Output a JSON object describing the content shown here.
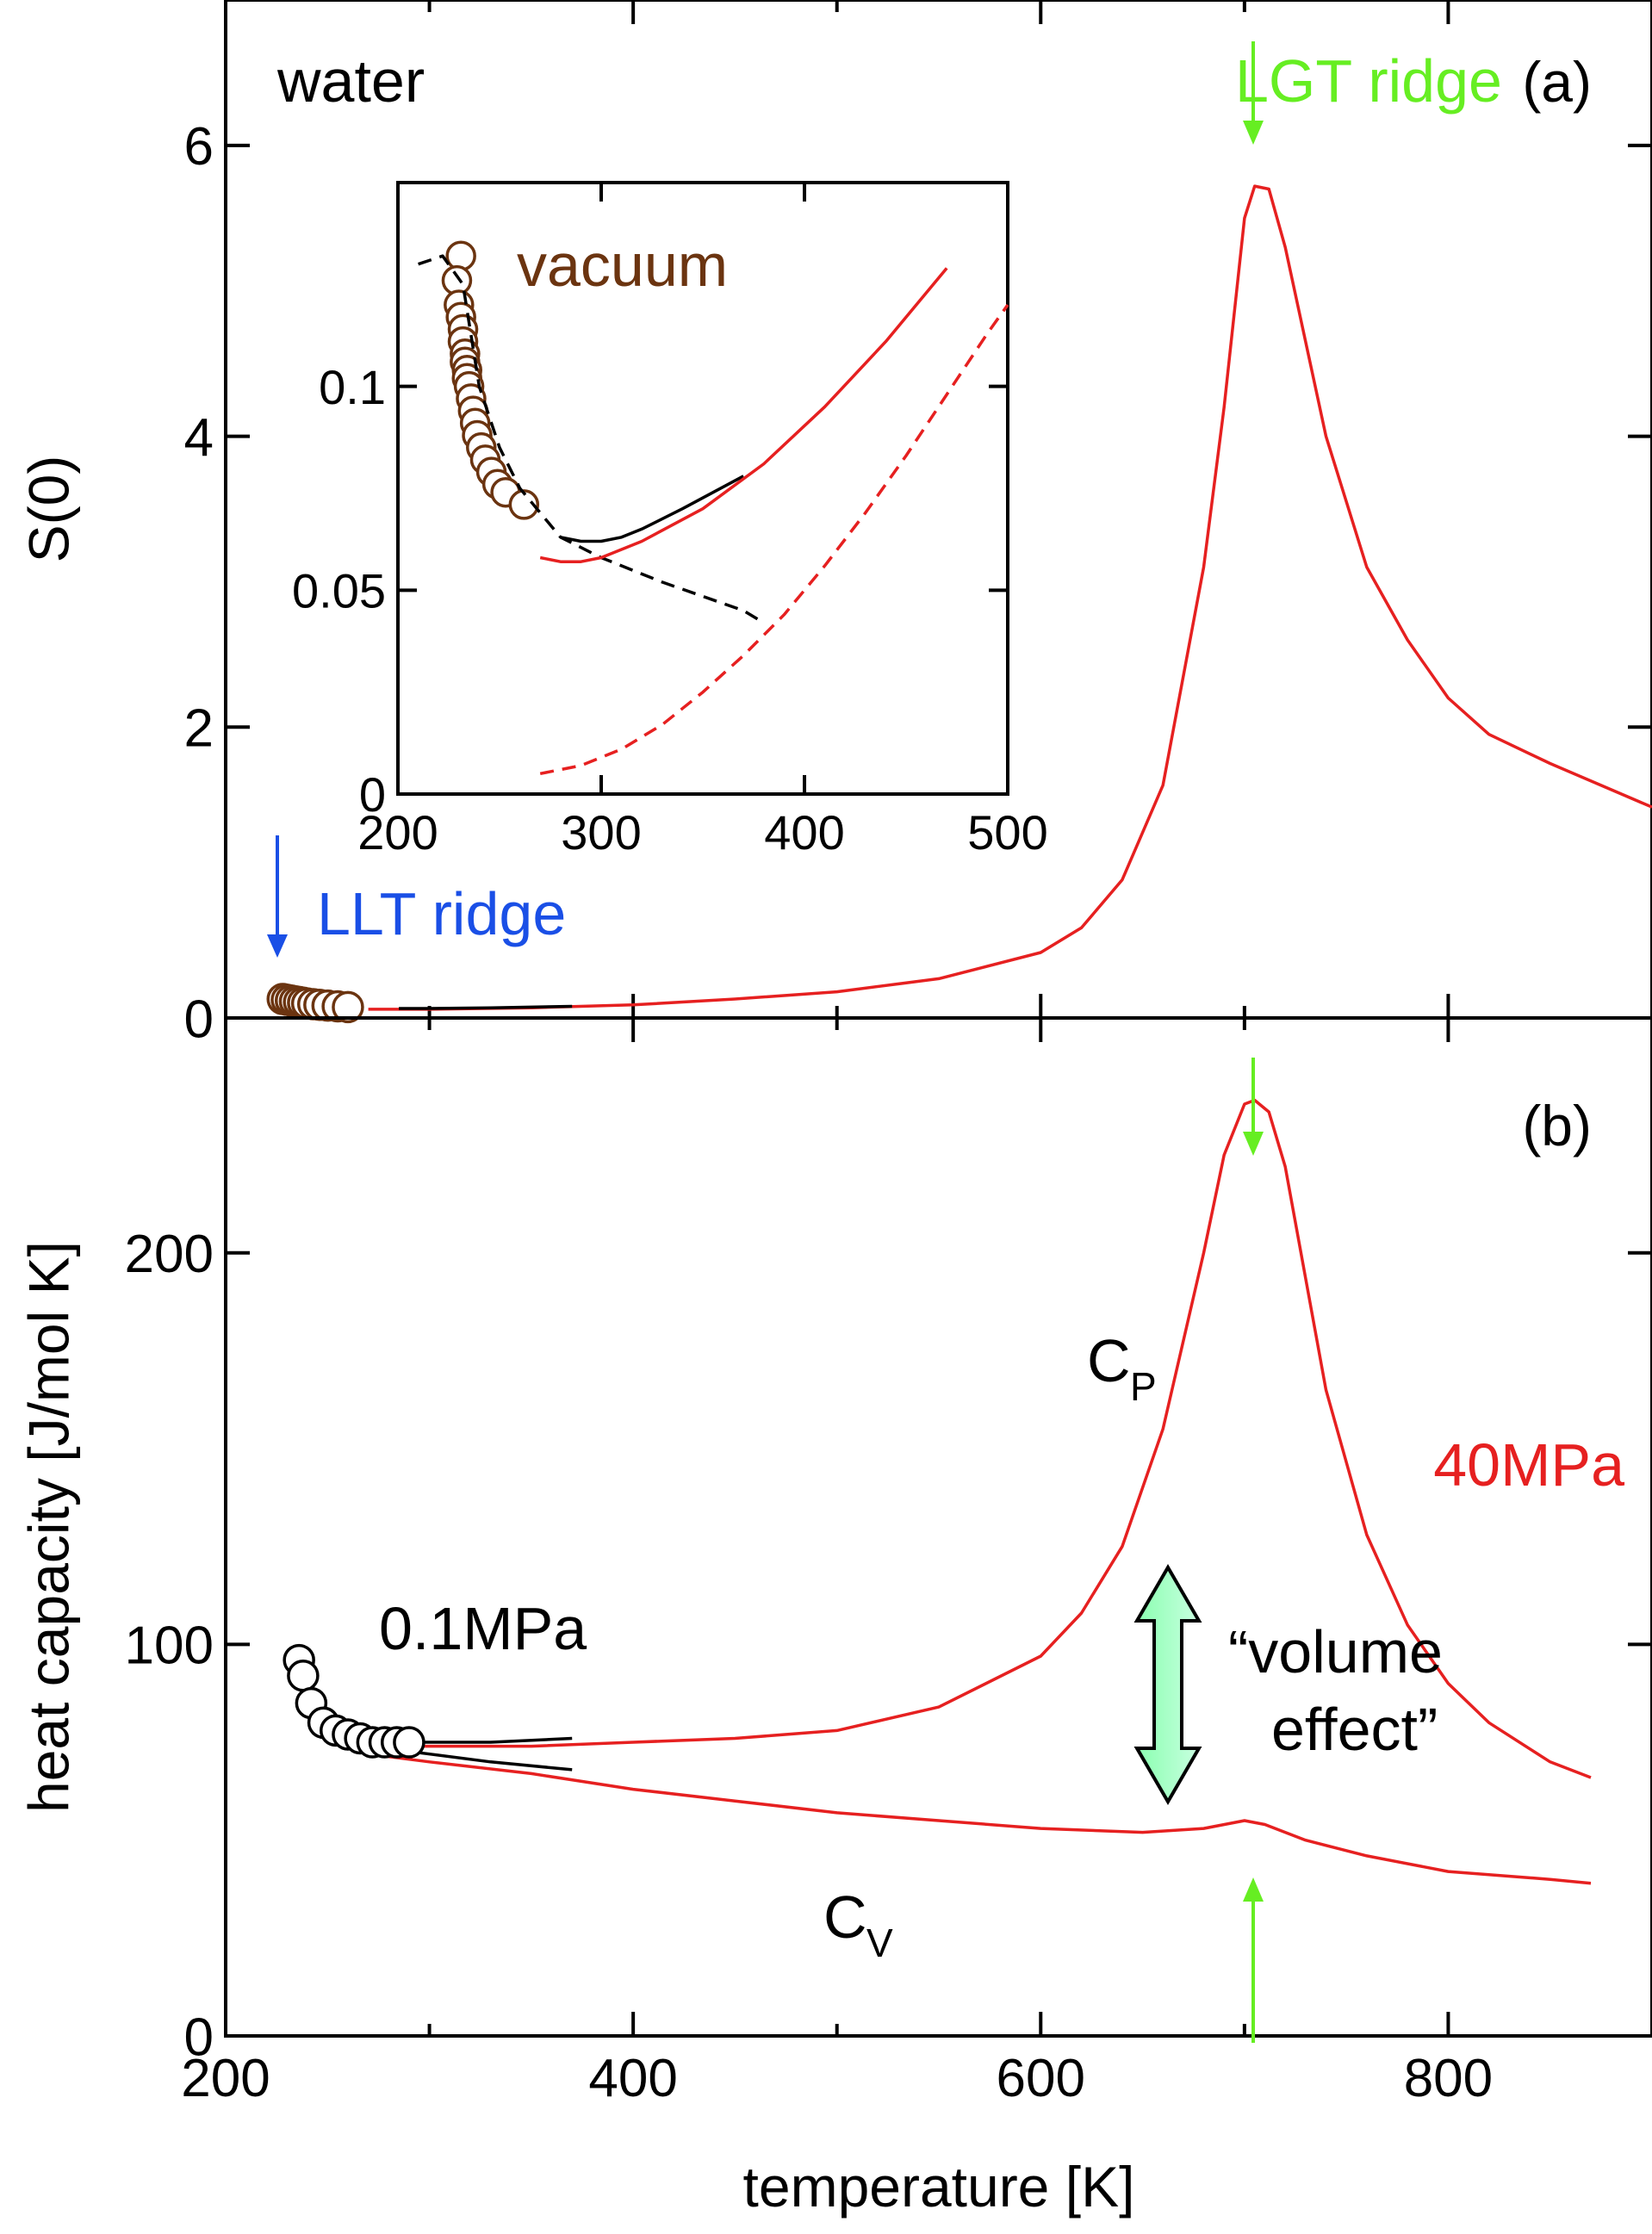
{
  "chart_data": [
    {
      "type": "line",
      "panel_label": "(a)",
      "title": "water",
      "xlabel": "",
      "ylabel": "S(0)",
      "xlim": [
        200,
        900
      ],
      "ylim": [
        0,
        7
      ],
      "xticks": [
        200,
        400,
        600,
        800
      ],
      "yticks": [
        0,
        2,
        4,
        6
      ],
      "ytick_labels": [
        "0",
        "2",
        "4",
        "6"
      ],
      "annotations": [
        {
          "text": "LGT ridge",
          "x": 705,
          "color": "#66ee22",
          "arrow": "down"
        },
        {
          "text": "LLT ridge",
          "x": 225,
          "color": "#1a4fe6",
          "arrow": "down"
        }
      ],
      "series": [
        {
          "name": "calc_40MPa",
          "color": "#e62020",
          "style": "solid",
          "x": [
            270,
            300,
            350,
            400,
            450,
            500,
            550,
            600,
            620,
            640,
            660,
            680,
            690,
            700,
            705,
            712,
            720,
            740,
            760,
            780,
            800,
            820,
            850,
            900
          ],
          "y": [
            0.06,
            0.06,
            0.07,
            0.09,
            0.13,
            0.18,
            0.27,
            0.45,
            0.62,
            0.95,
            1.6,
            3.1,
            4.2,
            5.5,
            5.72,
            5.7,
            5.3,
            4.0,
            3.1,
            2.6,
            2.2,
            1.95,
            1.75,
            1.45
          ]
        },
        {
          "name": "calc_0.1MPa",
          "color": "#000000",
          "style": "solid",
          "x": [
            285,
            300,
            330,
            370
          ],
          "y": [
            0.065,
            0.065,
            0.07,
            0.08
          ]
        },
        {
          "name": "exp_vacuum",
          "color": "#6b3410",
          "style": "markers",
          "x": [
            228,
            230,
            232,
            234,
            236,
            238,
            240,
            243,
            246,
            250,
            255,
            260
          ],
          "y": [
            0.13,
            0.125,
            0.12,
            0.115,
            0.11,
            0.105,
            0.1,
            0.095,
            0.09,
            0.085,
            0.08,
            0.075
          ]
        }
      ]
    },
    {
      "type": "line",
      "panel_label": "inset",
      "title": "vacuum",
      "xlim": [
        200,
        500
      ],
      "ylim": [
        0,
        0.15
      ],
      "xticks": [
        200,
        300,
        400,
        500
      ],
      "yticks": [
        0,
        0.05,
        0.1
      ],
      "ytick_labels": [
        "0",
        "0.05",
        "0.1"
      ],
      "series": [
        {
          "name": "exp_vacuum",
          "color": "#6b3410",
          "style": "markers",
          "x": [
            231,
            229,
            230,
            231,
            232,
            232,
            233,
            233,
            234,
            234,
            235,
            236,
            237,
            238,
            239,
            241,
            243,
            246,
            249,
            253,
            262
          ],
          "y": [
            0.132,
            0.126,
            0.12,
            0.117,
            0.114,
            0.111,
            0.108,
            0.106,
            0.104,
            0.102,
            0.1,
            0.097,
            0.094,
            0.091,
            0.088,
            0.085,
            0.082,
            0.079,
            0.076,
            0.074,
            0.071
          ]
        },
        {
          "name": "dashed_black",
          "color": "#000000",
          "style": "dashed",
          "x": [
            210,
            222,
            232,
            240,
            250,
            260,
            280,
            300,
            330,
            370,
            380
          ],
          "y": [
            0.13,
            0.132,
            0.125,
            0.1,
            0.085,
            0.075,
            0.063,
            0.058,
            0.052,
            0.045,
            0.042
          ]
        },
        {
          "name": "solid_black",
          "color": "#000000",
          "style": "solid",
          "x": [
            280,
            290,
            300,
            310,
            320,
            340,
            370
          ],
          "y": [
            0.063,
            0.062,
            0.062,
            0.063,
            0.065,
            0.07,
            0.078
          ]
        },
        {
          "name": "solid_red",
          "color": "#e62020",
          "style": "solid",
          "x": [
            270,
            280,
            290,
            300,
            320,
            350,
            380,
            410,
            440,
            470
          ],
          "y": [
            0.058,
            0.057,
            0.057,
            0.058,
            0.062,
            0.07,
            0.081,
            0.095,
            0.111,
            0.129
          ]
        },
        {
          "name": "dashed_red",
          "color": "#e62020",
          "style": "dashed",
          "x": [
            270,
            290,
            310,
            330,
            350,
            370,
            390,
            410,
            430,
            450,
            470,
            490,
            500
          ],
          "y": [
            0.005,
            0.007,
            0.011,
            0.017,
            0.025,
            0.034,
            0.044,
            0.056,
            0.069,
            0.083,
            0.098,
            0.113,
            0.12
          ]
        }
      ]
    },
    {
      "type": "line",
      "panel_label": "(b)",
      "xlabel": "temperature [K]",
      "ylabel": "heat capacity [J/mol K]",
      "xlim": [
        200,
        900
      ],
      "ylim": [
        0,
        260
      ],
      "xticks": [
        200,
        400,
        600,
        800
      ],
      "xtick_labels": [
        "200",
        "400",
        "600",
        "800"
      ],
      "yticks": [
        0,
        100,
        200
      ],
      "ytick_labels": [
        "0",
        "100",
        "200"
      ],
      "annotations": [
        {
          "text": "C",
          "sub": "P",
          "x": 665,
          "y": 187
        },
        {
          "text": "C",
          "sub": "V",
          "x": 640,
          "y": 30
        },
        {
          "text": "40MPa",
          "color": "#e62020",
          "x": 870,
          "y": 155
        },
        {
          "text": "0.1MPa",
          "x": 290,
          "y": 103
        },
        {
          "text": "“volume",
          "x": 785,
          "y": 98
        },
        {
          "text": "effect”",
          "x": 785,
          "y": 83
        }
      ],
      "series": [
        {
          "name": "Cp_40MPa",
          "color": "#e62020",
          "style": "solid",
          "x": [
            270,
            300,
            350,
            400,
            450,
            500,
            550,
            600,
            620,
            640,
            660,
            680,
            690,
            700,
            705,
            712,
            720,
            740,
            760,
            780,
            800,
            820,
            850,
            870
          ],
          "y": [
            74,
            74,
            74,
            75,
            76,
            78,
            84,
            97,
            108,
            125,
            155,
            200,
            225,
            238,
            239,
            236,
            222,
            165,
            128,
            105,
            90,
            80,
            70,
            66
          ]
        },
        {
          "name": "Cv_40MPa",
          "color": "#e62020",
          "style": "solid",
          "x": [
            270,
            300,
            350,
            400,
            450,
            500,
            550,
            600,
            650,
            680,
            700,
            710,
            730,
            760,
            800,
            850,
            870
          ],
          "y": [
            72,
            70,
            67,
            63,
            60,
            57,
            55,
            53,
            52,
            53,
            55,
            54,
            50,
            46,
            42,
            40,
            39
          ]
        },
        {
          "name": "Cp_0.1MPa",
          "color": "#000000",
          "style": "solid",
          "x": [
            270,
            300,
            330,
            370
          ],
          "y": [
            75,
            75,
            75,
            76
          ]
        },
        {
          "name": "Cv_0.1MPa",
          "color": "#000000",
          "style": "solid",
          "x": [
            270,
            300,
            330,
            370
          ],
          "y": [
            74,
            72,
            70,
            68
          ]
        },
        {
          "name": "exp_0.1MPa",
          "color": "#000000",
          "style": "markers",
          "x": [
            236,
            238,
            242,
            248,
            254,
            260,
            266,
            272,
            278,
            284,
            290
          ],
          "y": [
            96,
            92,
            85,
            80,
            78,
            77,
            76,
            75,
            75,
            75,
            75
          ]
        }
      ]
    }
  ]
}
